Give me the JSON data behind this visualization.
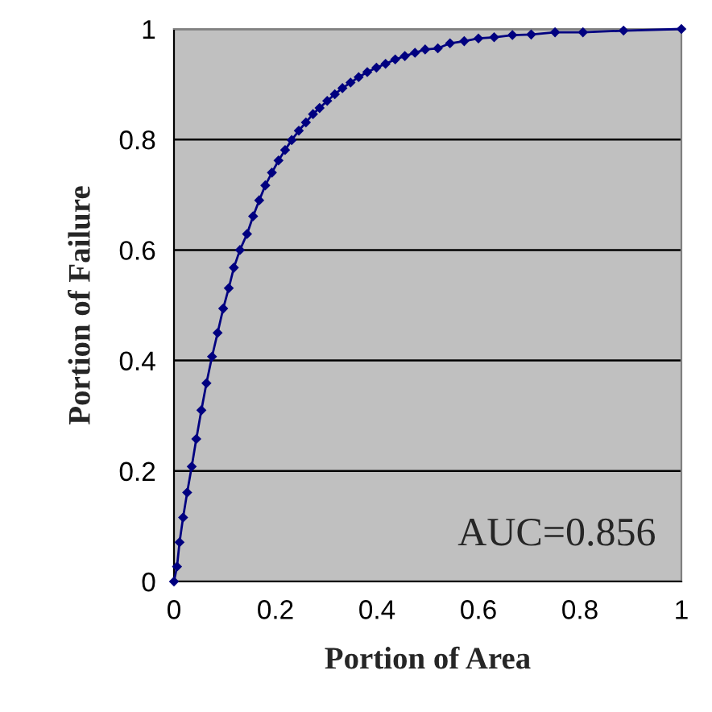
{
  "chart_data": {
    "type": "line",
    "xlabel": "Portion of Area",
    "ylabel": "Portion of Failure",
    "annotations": [
      "AUC=0.856"
    ],
    "series": [
      {
        "color": "#000080",
        "x": [
          0,
          0.006,
          0.011,
          0.018,
          0.026,
          0.035,
          0.044,
          0.054,
          0.064,
          0.075,
          0.086,
          0.097,
          0.108,
          0.118,
          0.13,
          0.144,
          0.156,
          0.168,
          0.18,
          0.193,
          0.206,
          0.219,
          0.232,
          0.246,
          0.26,
          0.274,
          0.287,
          0.302,
          0.317,
          0.332,
          0.348,
          0.364,
          0.381,
          0.399,
          0.417,
          0.436,
          0.455,
          0.475,
          0.495,
          0.52,
          0.544,
          0.572,
          0.6,
          0.631,
          0.667,
          0.704,
          0.751,
          0.806,
          0.886,
          1.0
        ],
        "values": [
          0,
          0.027,
          0.071,
          0.116,
          0.161,
          0.208,
          0.258,
          0.31,
          0.359,
          0.407,
          0.45,
          0.494,
          0.531,
          0.568,
          0.6,
          0.629,
          0.661,
          0.69,
          0.717,
          0.74,
          0.762,
          0.781,
          0.799,
          0.816,
          0.831,
          0.846,
          0.857,
          0.87,
          0.882,
          0.893,
          0.903,
          0.913,
          0.922,
          0.93,
          0.937,
          0.945,
          0.951,
          0.957,
          0.963,
          0.965,
          0.974,
          0.978,
          0.983,
          0.985,
          0.989,
          0.99,
          0.994,
          0.994,
          0.997,
          1.0
        ]
      }
    ],
    "xlim": [
      0,
      1
    ],
    "ylim": [
      0,
      1
    ],
    "xticks": [
      0,
      0.2,
      0.4,
      0.6,
      0.8,
      1
    ],
    "yticks": [
      0,
      0.2,
      0.4,
      0.6,
      0.8,
      1
    ],
    "grid": "y",
    "marker": "diamond",
    "line_style": "solid",
    "legend": false
  }
}
